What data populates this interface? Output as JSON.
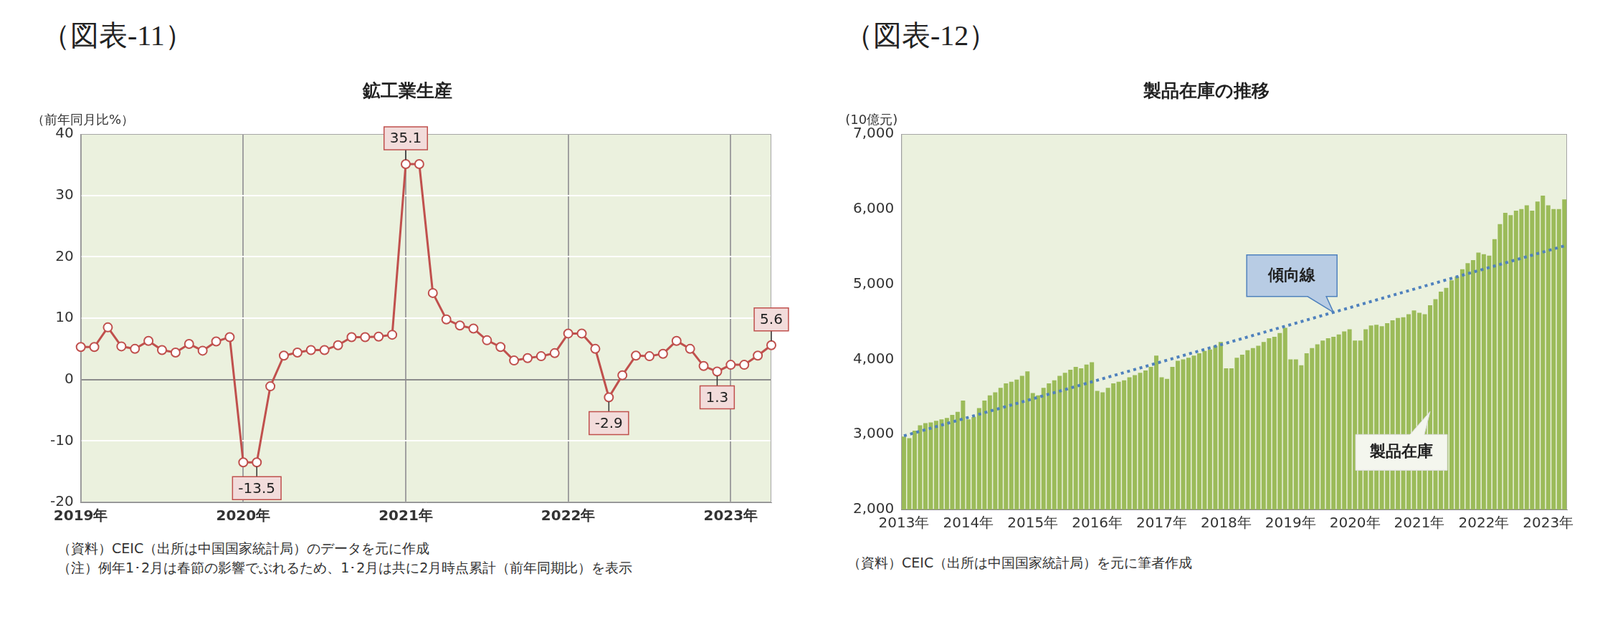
{
  "chart_data": [
    {
      "type": "line",
      "caption": "（図表-11）",
      "title": "鉱工業生産",
      "ylabel": "（前年同月比%）",
      "notes": [
        "（資料）CEIC（出所は中国国家統計局）のデータを元に作成",
        "（注）例年1･2月は春節の影響でぶれるため、1･2月は共に2月時点累計（前年同期比）を表示"
      ],
      "categories": [
        "2019年",
        null,
        null,
        null,
        null,
        null,
        null,
        null,
        null,
        null,
        null,
        null,
        "2020年",
        null,
        null,
        null,
        null,
        null,
        null,
        null,
        null,
        null,
        null,
        null,
        "2021年",
        null,
        null,
        null,
        null,
        null,
        null,
        null,
        null,
        null,
        null,
        null,
        "2022年",
        null,
        null,
        null,
        null,
        null,
        null,
        null,
        null,
        null,
        null,
        null,
        "2023年",
        null,
        null,
        null
      ],
      "values": [
        5.3,
        5.3,
        8.5,
        5.4,
        5.0,
        6.3,
        4.8,
        4.4,
        5.8,
        4.7,
        6.2,
        6.9,
        -13.5,
        -13.5,
        -1.1,
        3.9,
        4.4,
        4.8,
        4.8,
        5.6,
        6.9,
        6.9,
        7.0,
        7.3,
        35.1,
        35.1,
        14.1,
        9.8,
        8.8,
        8.3,
        6.4,
        5.3,
        3.1,
        3.5,
        3.8,
        4.3,
        7.5,
        7.5,
        5.0,
        -2.9,
        0.7,
        3.9,
        3.8,
        4.2,
        6.3,
        5.0,
        2.2,
        1.3,
        2.4,
        2.4,
        3.9,
        5.6
      ],
      "value_labels": [
        null,
        null,
        null,
        null,
        null,
        null,
        null,
        null,
        null,
        null,
        null,
        null,
        null,
        "-13.5",
        null,
        null,
        null,
        null,
        null,
        null,
        null,
        null,
        null,
        null,
        "35.1",
        null,
        null,
        null,
        null,
        null,
        null,
        null,
        null,
        null,
        null,
        null,
        null,
        null,
        null,
        "-2.9",
        null,
        null,
        null,
        null,
        null,
        null,
        null,
        "1.3",
        null,
        null,
        null,
        "5.6"
      ],
      "data_labels": true,
      "color": "#c0504d",
      "marker": "circle",
      "line_style": "solid",
      "ylim": [
        -20,
        40
      ],
      "yticks": [
        -20,
        -10,
        0,
        10,
        20,
        30,
        40
      ],
      "grid": true
    },
    {
      "type": "bar",
      "caption": "（図表-12）",
      "title": "製品在庫の推移",
      "ylabel": "(10億元)",
      "notes": [
        "（資料）CEIC（出所は中国国家統計局）を元に筆者作成"
      ],
      "categories": [
        "2013年",
        null,
        null,
        null,
        null,
        null,
        null,
        null,
        null,
        null,
        null,
        null,
        "2014年",
        null,
        null,
        null,
        null,
        null,
        null,
        null,
        null,
        null,
        null,
        null,
        "2015年",
        null,
        null,
        null,
        null,
        null,
        null,
        null,
        null,
        null,
        null,
        null,
        "2016年",
        null,
        null,
        null,
        null,
        null,
        null,
        null,
        null,
        null,
        null,
        null,
        "2017年",
        null,
        null,
        null,
        null,
        null,
        null,
        null,
        null,
        null,
        null,
        null,
        "2018年",
        null,
        null,
        null,
        null,
        null,
        null,
        null,
        null,
        null,
        null,
        null,
        "2019年",
        null,
        null,
        null,
        null,
        null,
        null,
        null,
        null,
        null,
        null,
        null,
        "2020年",
        null,
        null,
        null,
        null,
        null,
        null,
        null,
        null,
        null,
        null,
        null,
        "2021年",
        null,
        null,
        null,
        null,
        null,
        null,
        null,
        null,
        null,
        null,
        null,
        "2022年",
        null,
        null,
        null,
        null,
        null,
        null,
        null,
        null,
        null,
        null,
        null,
        "2023年",
        null,
        null,
        null
      ],
      "series": [
        {
          "name": "製品在庫",
          "type": "bar",
          "color": "#9bbb59",
          "values": [
            2970,
            2950,
            3050,
            3120,
            3150,
            3160,
            3180,
            3200,
            3220,
            3260,
            3300,
            3450,
            3200,
            3230,
            3350,
            3450,
            3520,
            3560,
            3620,
            3680,
            3700,
            3730,
            3780,
            3840,
            3550,
            3520,
            3620,
            3680,
            3720,
            3780,
            3820,
            3860,
            3900,
            3880,
            3930,
            3960,
            3580,
            3560,
            3620,
            3680,
            3700,
            3720,
            3760,
            3790,
            3820,
            3850,
            3900,
            4050,
            3760,
            3740,
            3900,
            3980,
            4000,
            4020,
            4050,
            4080,
            4110,
            4130,
            4180,
            4230,
            3880,
            3880,
            4020,
            4060,
            4120,
            4150,
            4180,
            4230,
            4280,
            4300,
            4350,
            4420,
            4000,
            4000,
            3920,
            4080,
            4150,
            4200,
            4250,
            4280,
            4300,
            4330,
            4370,
            4400,
            4250,
            4250,
            4400,
            4450,
            4460,
            4440,
            4480,
            4520,
            4550,
            4560,
            4600,
            4650,
            4620,
            4600,
            4720,
            4800,
            4900,
            4950,
            5050,
            5100,
            5200,
            5280,
            5320,
            5420,
            5400,
            5380,
            5600,
            5800,
            5950,
            5920,
            5980,
            6000,
            6050,
            5980,
            6100,
            6180,
            6050,
            6000,
            6000,
            6130
          ]
        },
        {
          "name": "傾向線",
          "type": "line",
          "color": "#4f81bd",
          "marker": "none",
          "line_style": "dotted",
          "values": [
            2980,
            null,
            null,
            null,
            null,
            null,
            null,
            null,
            null,
            null,
            null,
            null,
            null,
            null,
            null,
            null,
            null,
            null,
            null,
            null,
            null,
            null,
            null,
            null,
            null,
            null,
            null,
            null,
            null,
            null,
            null,
            null,
            null,
            null,
            null,
            null,
            null,
            null,
            null,
            null,
            null,
            null,
            null,
            null,
            null,
            null,
            null,
            null,
            null,
            null,
            null,
            null,
            null,
            null,
            null,
            null,
            null,
            null,
            null,
            null,
            null,
            null,
            null,
            null,
            null,
            null,
            null,
            null,
            null,
            null,
            null,
            null,
            null,
            null,
            null,
            null,
            null,
            null,
            null,
            null,
            null,
            null,
            null,
            null,
            null,
            null,
            null,
            null,
            null,
            null,
            null,
            null,
            null,
            null,
            null,
            null,
            null,
            null,
            null,
            null,
            null,
            null,
            null,
            null,
            null,
            null,
            null,
            null,
            null,
            null,
            null,
            null,
            null,
            null,
            null,
            null,
            null,
            null,
            null,
            null,
            null,
            null,
            null,
            5510
          ]
        }
      ],
      "ylim": [
        2000,
        7000
      ],
      "yticks": [
        {
          "value": 2000,
          "label": "2,000"
        },
        {
          "value": 3000,
          "label": "3,000"
        },
        {
          "value": 4000,
          "label": "4,000"
        },
        {
          "value": 5000,
          "label": "5,000"
        },
        {
          "value": 6000,
          "label": "6,000"
        },
        {
          "value": 7000,
          "label": "7,000"
        }
      ],
      "grid": false
    }
  ]
}
